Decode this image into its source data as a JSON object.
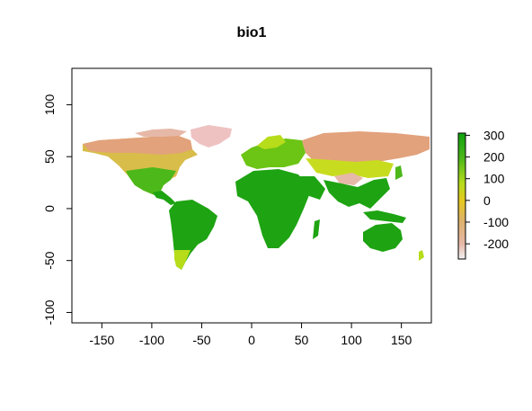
{
  "title": "bio1",
  "x_ticks": [
    "-150",
    "-100",
    "-50",
    "0",
    "50",
    "100",
    "150"
  ],
  "y_ticks": [
    "-100",
    "-50",
    "0",
    "50",
    "100"
  ],
  "legend_ticks": [
    "300",
    "200",
    "100",
    "0",
    "-100",
    "-200"
  ],
  "chart_data": {
    "type": "heatmap",
    "title": "bio1",
    "xlim": [
      -180,
      180
    ],
    "ylim": [
      -110,
      135
    ],
    "x_ticks": [
      -150,
      -100,
      -50,
      0,
      50,
      100,
      150
    ],
    "y_ticks": [
      -100,
      -50,
      0,
      50,
      100
    ],
    "legend": {
      "placement": "right",
      "range": [
        -270,
        310
      ],
      "ticks": [
        300,
        200,
        100,
        0,
        -100,
        -200
      ],
      "colors": [
        "#f2f2f2",
        "#e6b8a8",
        "#ddb26c",
        "#e6c820",
        "#b6dc1a",
        "#4cb81a",
        "#0fa10f"
      ]
    },
    "grid": false,
    "colors": {
      "hot": "#1ea312",
      "mid": "#c8dc1f",
      "cold": "#e2a27c",
      "coldest": "#efc2c2"
    }
  }
}
